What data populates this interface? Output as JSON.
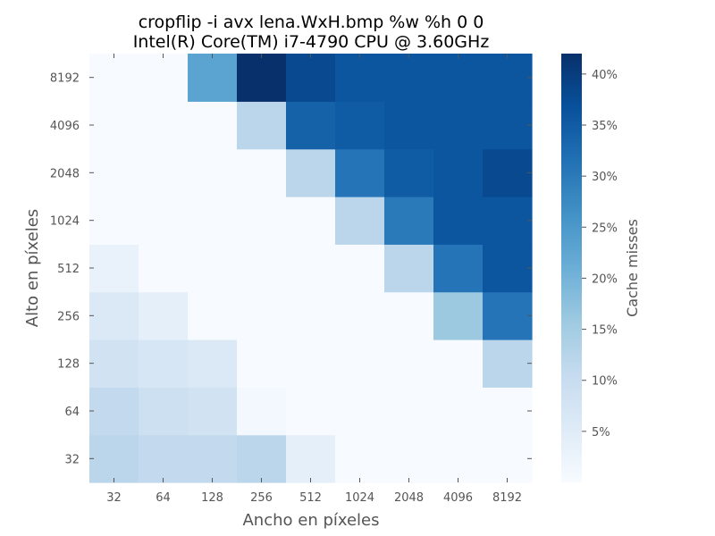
{
  "chart_data": {
    "type": "heatmap",
    "title_line1": "cropflip -i avx lena.WxH.bmp %w %h 0 0",
    "title_line2": "Intel(R) Core(TM) i7-4790 CPU @ 3.60GHz",
    "xlabel": "Ancho en píxeles",
    "ylabel": "Alto en píxeles",
    "x_categories": [
      "32",
      "64",
      "128",
      "256",
      "512",
      "1024",
      "2048",
      "4096",
      "8192"
    ],
    "y_categories": [
      "32",
      "64",
      "128",
      "256",
      "512",
      "1024",
      "2048",
      "4096",
      "8192"
    ],
    "values": [
      [
        12,
        11,
        11,
        12,
        4,
        0,
        0,
        0,
        0
      ],
      [
        11,
        9,
        8,
        1,
        0,
        0,
        0,
        0,
        0
      ],
      [
        8,
        7,
        6,
        0,
        0,
        0,
        0,
        0,
        12
      ],
      [
        6,
        4,
        0,
        0,
        0,
        0,
        0,
        16,
        31
      ],
      [
        3,
        0,
        0,
        0,
        0,
        0,
        12,
        31,
        36
      ],
      [
        0,
        0,
        0,
        0,
        0,
        12,
        30,
        36,
        36
      ],
      [
        0,
        0,
        0,
        0,
        12,
        31,
        35,
        36,
        38
      ],
      [
        0,
        0,
        0,
        12,
        34,
        35,
        36,
        36,
        36
      ],
      [
        0,
        0,
        23,
        42,
        38,
        36,
        36,
        36,
        36
      ]
    ],
    "colorbar": {
      "label": "Cache misses",
      "ticks": [
        "5%",
        "10%",
        "15%",
        "20%",
        "25%",
        "30%",
        "35%",
        "40%"
      ],
      "tick_values": [
        5,
        10,
        15,
        20,
        25,
        30,
        35,
        40
      ],
      "range": [
        0,
        42
      ],
      "colormap": "Blues"
    }
  }
}
